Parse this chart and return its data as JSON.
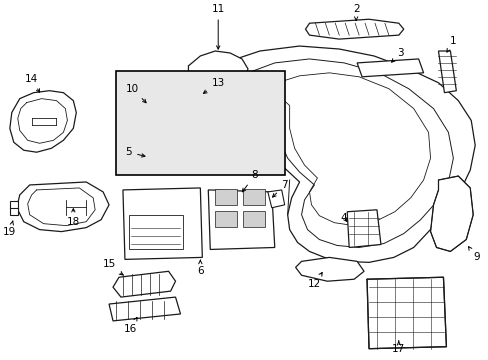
{
  "background_color": "#ffffff",
  "line_color": "#1a1a1a",
  "fig_width": 4.89,
  "fig_height": 3.6,
  "dpi": 100,
  "label_fontsize": 7.5,
  "inset_facecolor": "#e8e8e8",
  "inset_edgecolor": "#000000"
}
